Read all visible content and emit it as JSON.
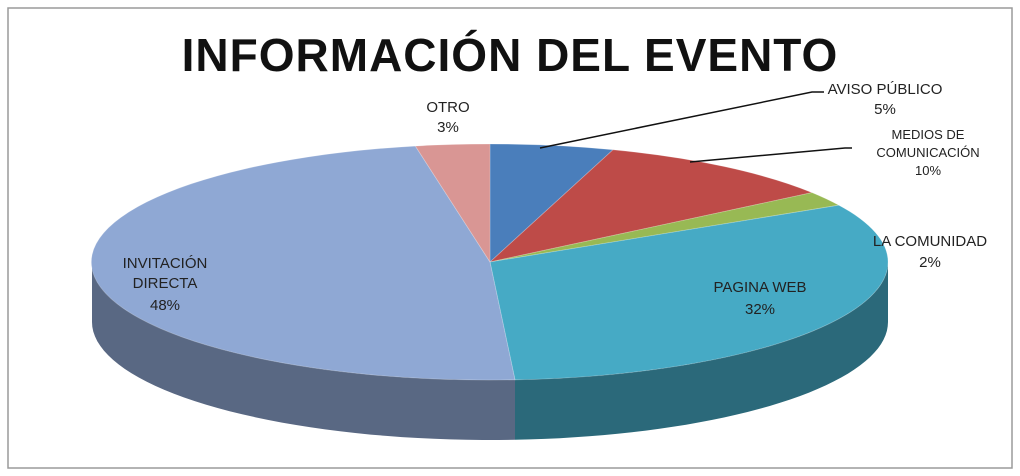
{
  "chart_data": {
    "type": "pie",
    "title": "INFORMACIÓN DEL EVENTO",
    "categories": [
      "AVISO PÚBLICO",
      "MEDIOS DE COMUNICACIÓN",
      "LA COMUNIDAD",
      "PAGINA WEB",
      "INVITACIÓN DIRECTA",
      "OTRO"
    ],
    "values": [
      5,
      10,
      2,
      32,
      48,
      3
    ],
    "value_labels": [
      "5%",
      "10%",
      "2%",
      "32%",
      "48%",
      "3%"
    ],
    "colors": [
      "#4a7ebb",
      "#be4b48",
      "#98b954",
      "#46aac5",
      "#8fa8d4",
      "#d99694"
    ]
  }
}
